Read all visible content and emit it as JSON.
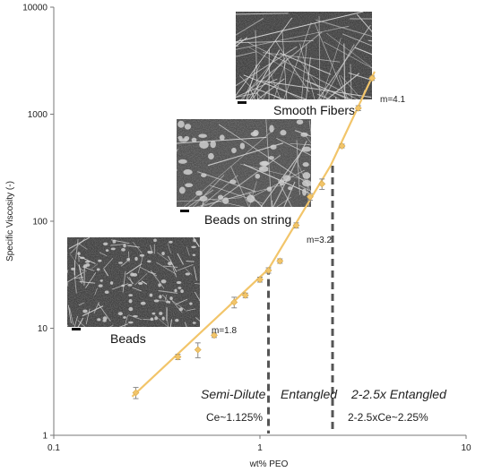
{
  "chart_data": {
    "type": "scatter",
    "xlabel": "wt% PEO",
    "ylabel": "Specific Viscosity (-)",
    "xscale": "log",
    "yscale": "log",
    "xlim": [
      0.1,
      10
    ],
    "ylim": [
      1,
      10000
    ],
    "x_ticks": [
      "0.1",
      "1",
      "10"
    ],
    "y_ticks": [
      "1",
      "10",
      "100",
      "1000",
      "10000"
    ],
    "grid": false,
    "series_color": "#f2c56a",
    "points": [
      {
        "x": 0.25,
        "y": 2.5,
        "err": 0.3
      },
      {
        "x": 0.4,
        "y": 5.4,
        "err": 0.3
      },
      {
        "x": 0.5,
        "y": 6.3,
        "err": 1.0
      },
      {
        "x": 0.6,
        "y": 8.6,
        "err": 0.4
      },
      {
        "x": 0.75,
        "y": 17.5,
        "err": 2.0
      },
      {
        "x": 0.85,
        "y": 20.3,
        "err": 1.0
      },
      {
        "x": 1.0,
        "y": 28.5,
        "err": 1.5
      },
      {
        "x": 1.1,
        "y": 34.7,
        "err": 2.0
      },
      {
        "x": 1.25,
        "y": 42.5,
        "err": 2.0
      },
      {
        "x": 1.5,
        "y": 91.5,
        "err": 5.0
      },
      {
        "x": 1.75,
        "y": 169,
        "err": 12
      },
      {
        "x": 2.0,
        "y": 223,
        "err": 25
      },
      {
        "x": 2.5,
        "y": 505,
        "err": 20
      },
      {
        "x": 3.0,
        "y": 1140,
        "err": 60
      },
      {
        "x": 3.5,
        "y": 2170,
        "err": 100
      }
    ],
    "fit_segments": [
      {
        "slope_label": "m=1.8",
        "x": [
          0.24,
          1.1
        ],
        "y": [
          2.3,
          35.7
        ]
      },
      {
        "slope_label": "m=3.2",
        "x": [
          1.1,
          2.2
        ],
        "y": [
          35.7,
          330
        ]
      },
      {
        "slope_label": "m=4.1",
        "x": [
          2.2,
          3.6
        ],
        "y": [
          330,
          2500
        ]
      }
    ],
    "dashed_lines": [
      {
        "x": 1.1,
        "y_from": 1,
        "y_to": 37
      },
      {
        "x": 2.25,
        "y_from": 1,
        "y_to": 330
      }
    ],
    "annotations": {
      "slope_low": "m=1.8",
      "slope_mid": "m=3.2",
      "slope_high": "m=4.1",
      "regime_semi": "Semi-Dilute",
      "regime_entangled": "Entangled",
      "regime_2x": "2-2.5x Entangled",
      "ce_label": "Ce~1.125%",
      "ce2_label": "2-2.5xCe~2.25%"
    },
    "insets": [
      {
        "label": "Beads"
      },
      {
        "label": "Beads on string"
      },
      {
        "label": "Smooth Fibers"
      }
    ]
  }
}
